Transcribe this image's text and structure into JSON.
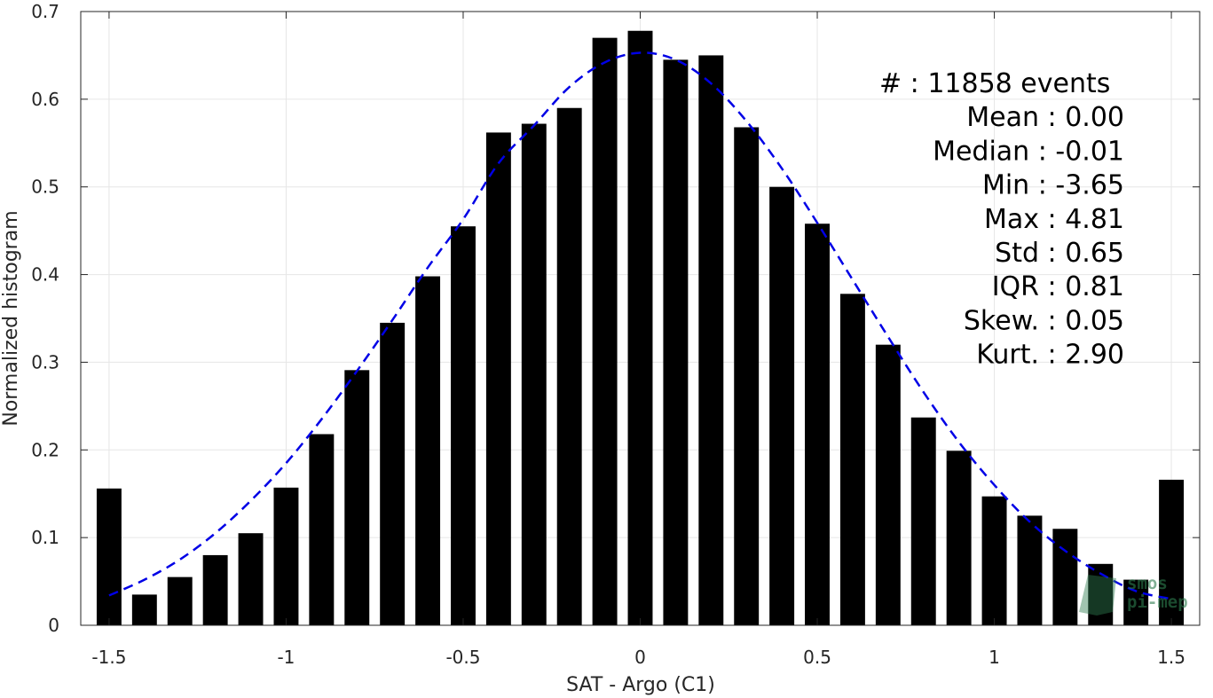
{
  "chart_data": {
    "type": "bar",
    "xlabel": "SAT - Argo (C1)",
    "ylabel": "Normalized histogram",
    "xlim": [
      -1.58,
      1.58
    ],
    "ylim": [
      0,
      0.7
    ],
    "xticks": [
      -1.5,
      -1,
      -0.5,
      0,
      0.5,
      1,
      1.5
    ],
    "xtick_labels": [
      "-1.5",
      "-1",
      "-0.5",
      "0",
      "0.5",
      "1",
      "1.5"
    ],
    "yticks": [
      0,
      0.1,
      0.2,
      0.3,
      0.4,
      0.5,
      0.6,
      0.7
    ],
    "ytick_labels": [
      "0",
      "0.1",
      "0.2",
      "0.3",
      "0.4",
      "0.5",
      "0.6",
      "0.7"
    ],
    "grid": true,
    "bar_color": "#000000",
    "fit_color": "#0000e6",
    "bars": {
      "x": [
        -1.5,
        -1.4,
        -1.3,
        -1.2,
        -1.1,
        -1.0,
        -0.9,
        -0.8,
        -0.7,
        -0.6,
        -0.5,
        -0.4,
        -0.3,
        -0.2,
        -0.1,
        0.0,
        0.1,
        0.2,
        0.3,
        0.4,
        0.5,
        0.6,
        0.7,
        0.8,
        0.9,
        1.0,
        1.1,
        1.2,
        1.3,
        1.4,
        1.5
      ],
      "values": [
        0.156,
        0.035,
        0.055,
        0.08,
        0.105,
        0.157,
        0.218,
        0.291,
        0.345,
        0.398,
        0.455,
        0.562,
        0.572,
        0.59,
        0.67,
        0.678,
        0.645,
        0.65,
        0.568,
        0.5,
        0.458,
        0.378,
        0.32,
        0.237,
        0.199,
        0.147,
        0.125,
        0.11,
        0.07,
        0.052,
        0.166
      ]
    },
    "fit_curve": {
      "name": "Gaussian fit",
      "x": [
        -1.5,
        -1.4,
        -1.3,
        -1.2,
        -1.1,
        -1.0,
        -0.9,
        -0.8,
        -0.7,
        -0.6,
        -0.5,
        -0.4,
        -0.3,
        -0.2,
        -0.1,
        0.0,
        0.1,
        0.2,
        0.3,
        0.4,
        0.5,
        0.6,
        0.7,
        0.8,
        0.9,
        1.0,
        1.1,
        1.2,
        1.3,
        1.4,
        1.5
      ],
      "values": [
        0.034,
        0.052,
        0.075,
        0.105,
        0.142,
        0.185,
        0.235,
        0.29,
        0.348,
        0.408,
        0.463,
        0.527,
        0.57,
        0.614,
        0.642,
        0.653,
        0.645,
        0.618,
        0.575,
        0.521,
        0.459,
        0.394,
        0.329,
        0.266,
        0.209,
        0.16,
        0.118,
        0.085,
        0.059,
        0.039,
        0.03
      ]
    },
    "stats": [
      "#  : 11858 events",
      "Mean : 0.00",
      "Median : -0.01",
      "Min : -3.65",
      "Max : 4.81",
      "Std : 0.65",
      "IQR : 0.81",
      "Skew. : 0.05",
      "Kurt. : 2.90"
    ],
    "logo": [
      "smos",
      "pi-mep"
    ]
  }
}
